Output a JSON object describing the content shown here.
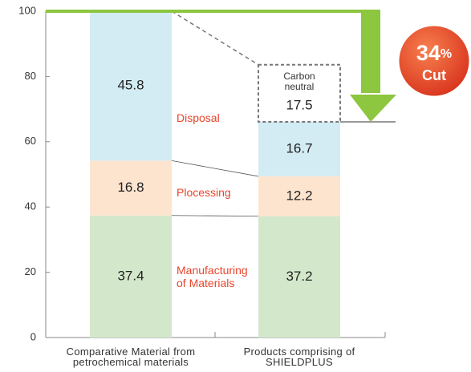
{
  "chart_data": {
    "type": "stacked_bar",
    "categories": [
      "Comparative Material from petrochemical materials",
      "Products comprising of SHIELDPLUS"
    ],
    "series": [
      {
        "name": "Manufacturing of Materials",
        "color": "#d3e8cb",
        "values": [
          37.4,
          37.2
        ]
      },
      {
        "name": "Plocessing",
        "color": "#fde4cf",
        "values": [
          16.8,
          12.2
        ]
      },
      {
        "name": "Disposal",
        "color": "#d3ecf4",
        "values": [
          45.8,
          16.7
        ]
      },
      {
        "name": "Carbon neutral",
        "color": "#777777",
        "dashed": true,
        "values": [
          null,
          17.5
        ]
      }
    ],
    "ylim": [
      0,
      100
    ],
    "yticks": [
      0,
      20,
      40,
      60,
      80,
      100
    ],
    "label_color": "#e8452c",
    "badge": [
      "34",
      "%",
      "Cut"
    ]
  }
}
